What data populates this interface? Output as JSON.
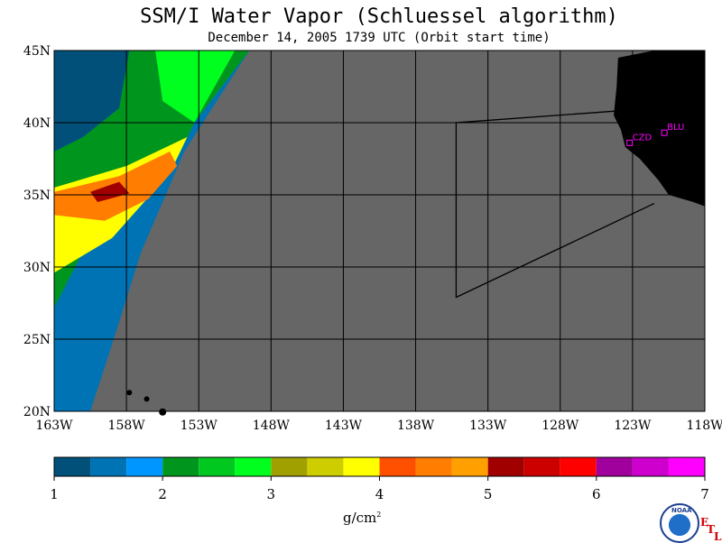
{
  "title": "SSM/I Water Vapor (Schluessel algorithm)",
  "subtitle": "December 14, 2005  1739 UTC  (Orbit start time)",
  "lat_labels": [
    "45N",
    "40N",
    "35N",
    "30N",
    "25N",
    "20N"
  ],
  "lon_labels": [
    "163W",
    "158W",
    "153W",
    "148W",
    "143W",
    "138W",
    "133W",
    "128W",
    "123W",
    "118W"
  ],
  "stations": [
    {
      "label": "CZD",
      "lat": 38.6,
      "lon": -123.2
    },
    {
      "label": "BLU",
      "lat": 39.3,
      "lon": -120.8
    }
  ],
  "colorbar": {
    "colors": [
      "#00507a",
      "#0073b5",
      "#0096ff",
      "#00961e",
      "#00c81e",
      "#00ff1e",
      "#a0a000",
      "#cdcd00",
      "#ffff00",
      "#ff5000",
      "#ff7d00",
      "#ffa000",
      "#a00000",
      "#cd0000",
      "#ff0000",
      "#a0009b",
      "#cd00cd",
      "#ff00ff"
    ],
    "tick_labels": [
      "1",
      "2",
      "3",
      "4",
      "5",
      "6",
      "7"
    ],
    "units": "g/cm",
    "units_sup": "2"
  },
  "colors": {
    "ocean_no_data": "#666666",
    "land": "#000000",
    "station": "#ff00ff",
    "grid": "#000000"
  },
  "logo_text": "NOAA",
  "etl_letters": [
    "E",
    "T",
    "L"
  ]
}
